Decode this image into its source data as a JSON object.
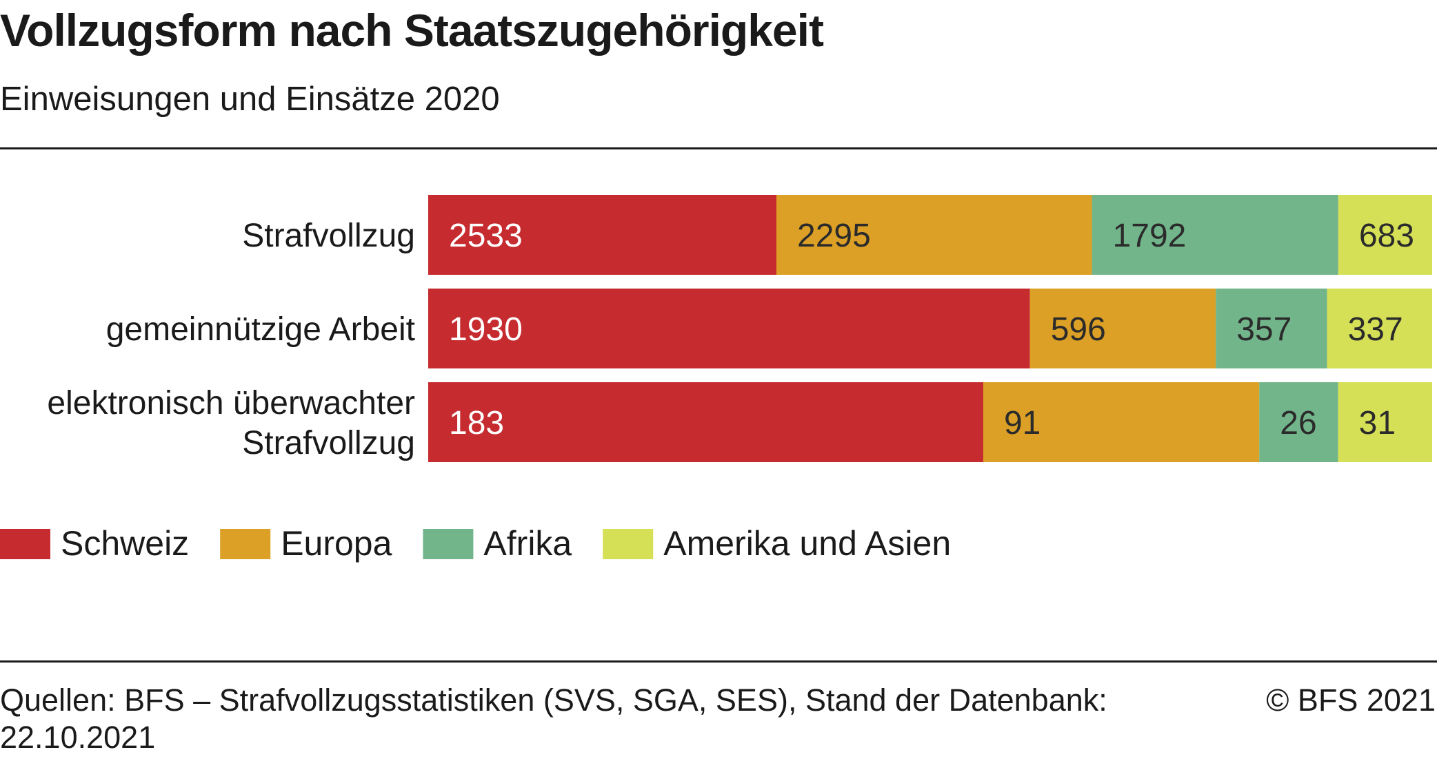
{
  "chart_data": {
    "type": "bar",
    "orientation": "horizontal",
    "stacked": "percent",
    "title": "Vollzugsform nach Staatszugehörigkeit",
    "subtitle": "Einweisungen und Einsätze 2020",
    "categories": [
      [
        "Strafvollzug"
      ],
      [
        "gemeinnützige Arbeit"
      ],
      [
        "elektronisch überwachter",
        "Strafvollzug"
      ]
    ],
    "series": [
      {
        "name": "Schweiz",
        "color": "#c62c2f",
        "label_color": "#ffffff",
        "values": [
          2533,
          1930,
          183
        ]
      },
      {
        "name": "Europa",
        "color": "#dca026",
        "label_color": "#2b2b2b",
        "values": [
          2295,
          596,
          91
        ]
      },
      {
        "name": "Afrika",
        "color": "#72b58b",
        "label_color": "#2b2b2b",
        "values": [
          1792,
          357,
          26
        ]
      },
      {
        "name": "Amerika und Asien",
        "color": "#d5e056",
        "label_color": "#2b2b2b",
        "values": [
          683,
          337,
          31
        ]
      }
    ],
    "legend": "bottom-left",
    "grid": false
  },
  "footer": {
    "source": "Quellen: BFS – Strafvollzugsstatistiken (SVS, SGA, SES), Stand der Datenbank: 22.10.2021",
    "copyright": "© BFS 2021"
  }
}
